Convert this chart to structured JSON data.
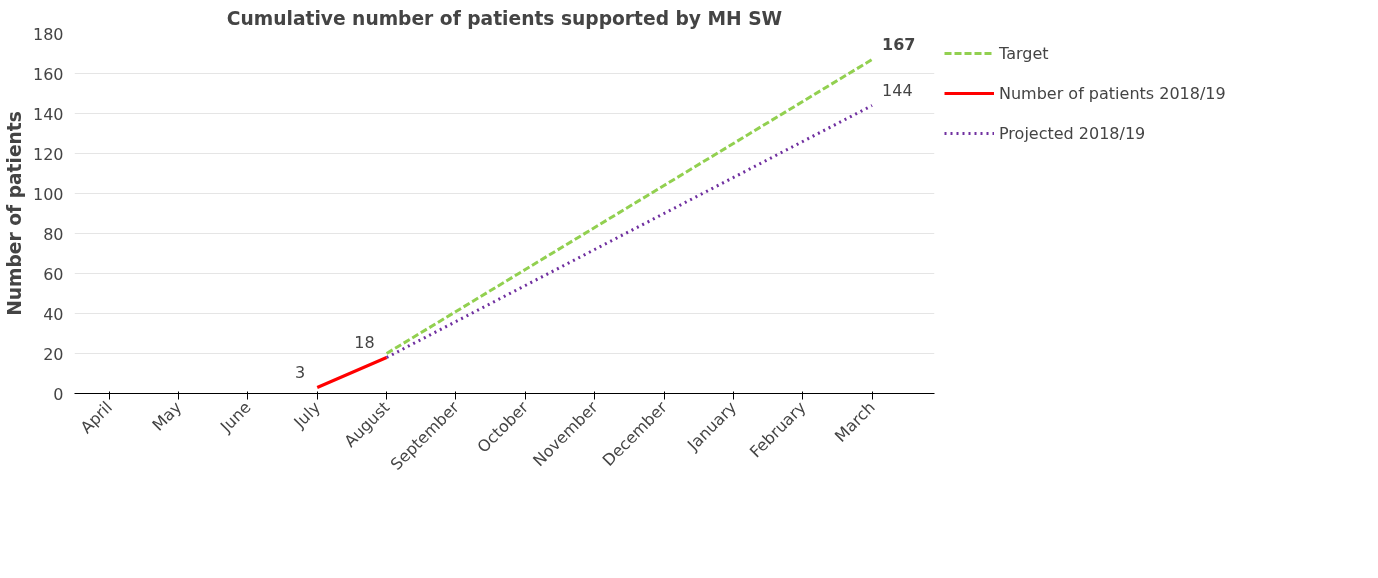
{
  "chart_data": {
    "type": "line",
    "title": "Cumulative number of patients supported by MH SW",
    "ylabel": "Number of patients",
    "categories": [
      "April",
      "May",
      "June",
      "July",
      "August",
      "September",
      "October",
      "November",
      "December",
      "January",
      "February",
      "March"
    ],
    "ylim": [
      0,
      180
    ],
    "yticks": [
      0,
      20,
      40,
      60,
      80,
      100,
      120,
      140,
      160,
      180
    ],
    "grid": "y",
    "legend": "right",
    "series": [
      {
        "name": "Target",
        "color": "#92d050",
        "line_style": "dashed",
        "values": [
          null,
          null,
          null,
          null,
          20,
          41,
          62,
          83,
          104,
          125,
          146,
          167
        ],
        "value_labels": [
          null,
          null,
          null,
          null,
          null,
          null,
          null,
          null,
          null,
          null,
          null,
          "167"
        ]
      },
      {
        "name": "Number of patients 2018/19",
        "color": "#ff0000",
        "line_style": "solid",
        "values": [
          null,
          null,
          null,
          3,
          18,
          null,
          null,
          null,
          null,
          null,
          null,
          null
        ],
        "value_labels": [
          null,
          null,
          null,
          "3",
          "18",
          null,
          null,
          null,
          null,
          null,
          null,
          null
        ]
      },
      {
        "name": "Projected 2018/19",
        "color": "#7030a0",
        "line_style": "dotted",
        "values": [
          null,
          null,
          null,
          null,
          18,
          36,
          54,
          72,
          90,
          108,
          126,
          144
        ],
        "value_labels": [
          null,
          null,
          null,
          null,
          null,
          null,
          null,
          null,
          null,
          null,
          null,
          "144"
        ]
      }
    ]
  }
}
